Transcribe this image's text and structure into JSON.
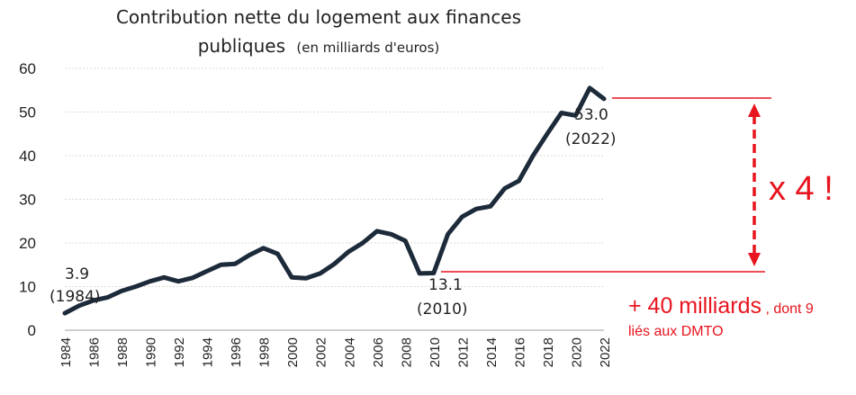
{
  "chart_data": {
    "type": "line",
    "title_main": "Contribution nette du logement aux finances",
    "title_second": "publiques",
    "title_unit": "(en milliards d'euros)",
    "xlabel": "",
    "ylabel": "",
    "ylim": [
      0,
      60
    ],
    "yticks": [
      "0",
      "10",
      "20",
      "30",
      "40",
      "50",
      "60"
    ],
    "xticks": [
      "1984",
      "1986",
      "1988",
      "1990",
      "1992",
      "1994",
      "1996",
      "1998",
      "2000",
      "2002",
      "2004",
      "2006",
      "2008",
      "2010",
      "2012",
      "2014",
      "2016",
      "2018",
      "2020",
      "2022"
    ],
    "grid": true,
    "series": [
      {
        "color": "#1c2a3a",
        "x": [
          1984,
          1985,
          1986,
          1987,
          1988,
          1989,
          1990,
          1991,
          1992,
          1993,
          1994,
          1995,
          1996,
          1997,
          1998,
          1999,
          2000,
          2001,
          2002,
          2003,
          2004,
          2005,
          2006,
          2007,
          2008,
          2009,
          2010,
          2011,
          2012,
          2013,
          2014,
          2015,
          2016,
          2017,
          2018,
          2019,
          2020,
          2021,
          2022
        ],
        "values": [
          3.9,
          5.6,
          6.8,
          7.5,
          9.0,
          10.0,
          11.2,
          12.1,
          11.2,
          12.0,
          13.5,
          15.0,
          15.2,
          17.2,
          18.8,
          17.5,
          12.1,
          11.9,
          13.0,
          15.2,
          18.0,
          20.0,
          22.7,
          22.0,
          20.5,
          13.0,
          13.1,
          22.0,
          26.0,
          27.8,
          28.4,
          32.5,
          34.2,
          40.0,
          45.0,
          49.8,
          49.2,
          55.5,
          53.0
        ]
      }
    ],
    "annotations": {
      "start_value": "3.9",
      "start_year": "(1984)",
      "low_value": "13.1",
      "low_year": "(2010)",
      "end_value": "53.0",
      "end_year": "(2022)",
      "multiplier": "x 4 !",
      "increase_main": "+ 40 milliards",
      "increase_suffix": ", dont 9",
      "increase_line2": "liés aux DMTO",
      "accent_color": "#e8141e"
    }
  }
}
